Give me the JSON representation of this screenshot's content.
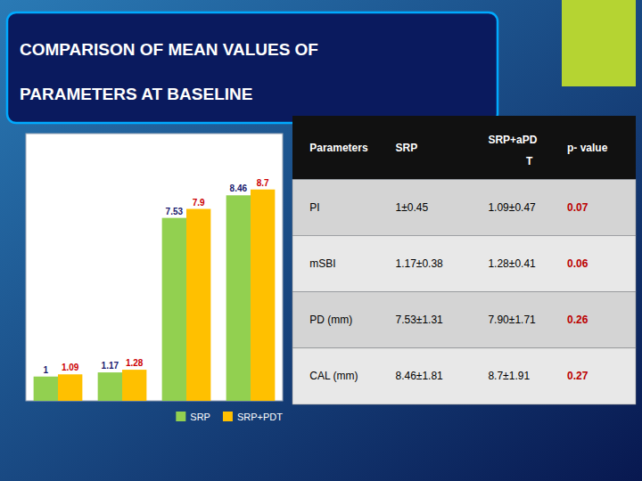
{
  "chart_data": {
    "type": "bar",
    "title": "COMPARISON OF MEAN VALUES OF",
    "subtitle": "PARAMETERS AT BASELINE",
    "categories": [
      null,
      null,
      null,
      null
    ],
    "series": [
      {
        "name": "SRP",
        "color": "#92d050",
        "values": [
          1.0,
          1.17,
          7.53,
          8.46
        ]
      },
      {
        "name": "SRP+PDT",
        "color": "#ffc000",
        "values": [
          1.09,
          1.28,
          7.9,
          8.7
        ]
      }
    ],
    "ylim": [
      0,
      11
    ],
    "yticks": [],
    "grid": false,
    "tick_labels": false,
    "data_labels": true,
    "legend": "lower right",
    "table": {
      "header": [
        [
          "Parameters"
        ],
        [
          "SRP"
        ],
        [
          "SRP+aPD",
          "T"
        ],
        [
          "p- value"
        ]
      ],
      "rows": [
        [
          "PI",
          "1±0.45",
          "1.09±0.47",
          "0.07"
        ],
        [
          "mSBI",
          "1.17±0.38",
          "1.28±0.41",
          "0.06"
        ],
        [
          "PD (mm)",
          "7.53±1.31",
          "7.90±1.71",
          "0.26"
        ],
        [
          "CAL (mm)",
          "8.46±1.81",
          "8.7±1.91",
          "0.27"
        ]
      ]
    }
  }
}
